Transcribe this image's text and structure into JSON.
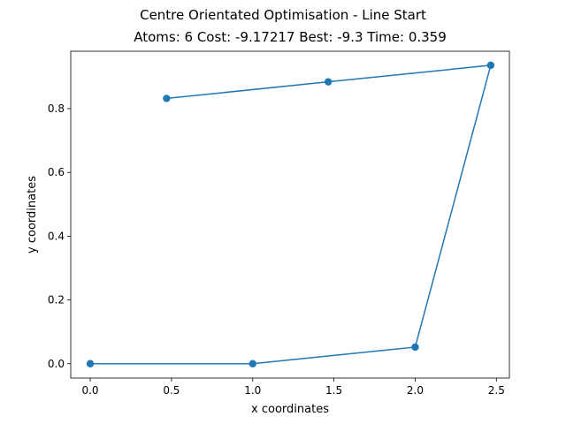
{
  "chart_data": {
    "type": "line",
    "title": "Centre Orientated Optimisation - Line Start",
    "subtitle": "Atoms: 6 Cost: -9.17217 Best: -9.3 Time: 0.359",
    "xlabel": "x coordinates",
    "ylabel": "y coordinates",
    "xlim": [
      -0.12,
      2.58
    ],
    "ylim": [
      -0.045,
      0.98
    ],
    "xticks": [
      0.0,
      0.5,
      1.0,
      1.5,
      2.0,
      2.5
    ],
    "xtick_labels": [
      "0.0",
      "0.5",
      "1.0",
      "1.5",
      "2.0",
      "2.5"
    ],
    "yticks": [
      0.0,
      0.2,
      0.4,
      0.6,
      0.8
    ],
    "ytick_labels": [
      "0.0",
      "0.2",
      "0.4",
      "0.6",
      "0.8"
    ],
    "grid": false,
    "series": [
      {
        "color": "#1f77b4",
        "marker": "circle",
        "x": [
          0.0,
          1.0,
          2.0,
          2.465,
          1.465,
          0.47
        ],
        "y": [
          0.0,
          0.0,
          0.052,
          0.936,
          0.884,
          0.832
        ]
      }
    ]
  }
}
